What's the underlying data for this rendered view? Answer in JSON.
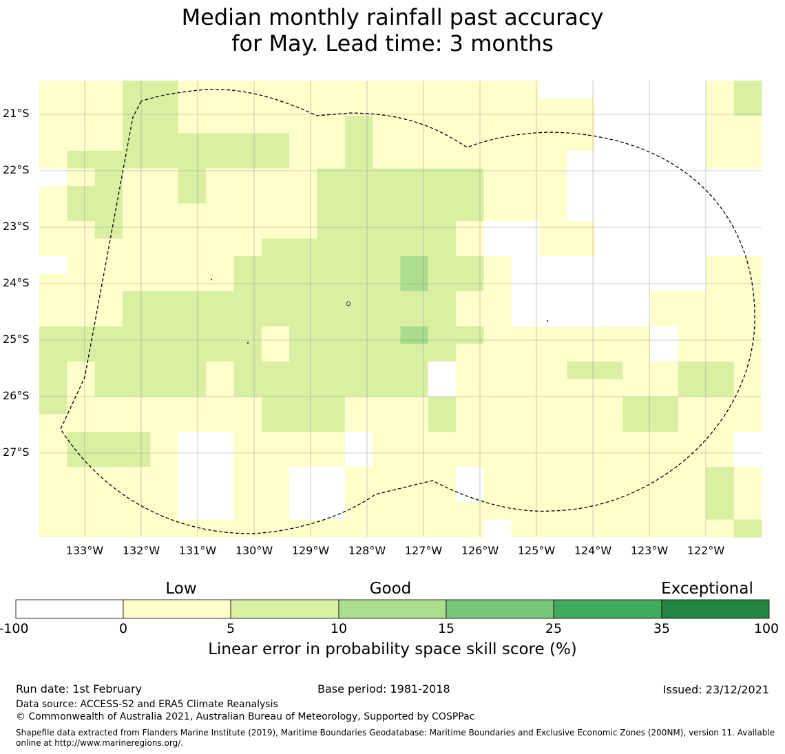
{
  "title": {
    "line1": "Median monthly rainfall past accuracy",
    "line2": "for May. Lead time: 3 months"
  },
  "map": {
    "lat_labels": [
      "21°S",
      "22°S",
      "23°S",
      "24°S",
      "25°S",
      "26°S",
      "27°S"
    ],
    "lon_labels": [
      "133°W",
      "132°W",
      "131°W",
      "130°W",
      "129°W",
      "128°W",
      "127°W",
      "126°W",
      "125°W",
      "124°W",
      "123°W",
      "122°W"
    ],
    "grid_class_codes": [
      "11122111111111111100000012",
      "11122111111111111111000012",
      "11122111111211111111000011",
      "11122222211211111111000011",
      "12222222211211111110000011",
      "01211211112222221110000000",
      "12211211112222221110000000",
      "12211111112222221110000000",
      "11211111112222210011000000",
      "11111111222222210011000000",
      "01111112222223221000000011",
      "11111112222223221000000011",
      "11122222222222211000001111",
      "11122222222222211000001111",
      "22222222122224221111110111",
      "22222222122222211111110111",
      "21222212222222011112211221",
      "21222212222222011111111221",
      "21111111222111211111122111",
      "11111111222111211111122111",
      "12221001111011111111111110",
      "12221001111011111111111110",
      "11111001100111101111111121",
      "11111001100111101111111121",
      "11111001100111111111111121",
      "11111111111111110111111112"
    ],
    "colors": {
      "class_0": "#ffffff",
      "class_1": "#ffffcc",
      "class_2": "#d9f0a3",
      "class_3": "#addd8e",
      "class_4": "#a8dc8c",
      "grid": "#808080",
      "boundary": "#000000"
    }
  },
  "legend": {
    "categories": [
      "Low",
      "Good",
      "Exceptional"
    ],
    "ticks": [
      "-100",
      "0",
      "5",
      "10",
      "15",
      "25",
      "35",
      "100"
    ],
    "colors": [
      "#ffffff",
      "#ffffcc",
      "#d9f0a3",
      "#addd8e",
      "#78c679",
      "#41ab5d",
      "#238443"
    ],
    "title": "Linear error in probability space skill score (%)"
  },
  "footer": {
    "run_date": "Run date: 1st February",
    "base_period": "Base period: 1981-2018",
    "issued": "Issued: 23/12/2021",
    "data_source": "Data source: ACCESS-S2 and ERA5 Climate Reanalysis",
    "copyright": "© Commonwealth of Australia 2021, Australian Bureau of Meteorology, Supported by COSPPac",
    "shapefile_line1": "Shapefile data extracted from Flanders Marine Institute (2019), Maritime Boundaries Geodatabase: Maritime Boundaries and Exclusive Economic Zones (200NM), version 11. Available",
    "shapefile_line2": "online at http://www.marineregions.org/."
  }
}
